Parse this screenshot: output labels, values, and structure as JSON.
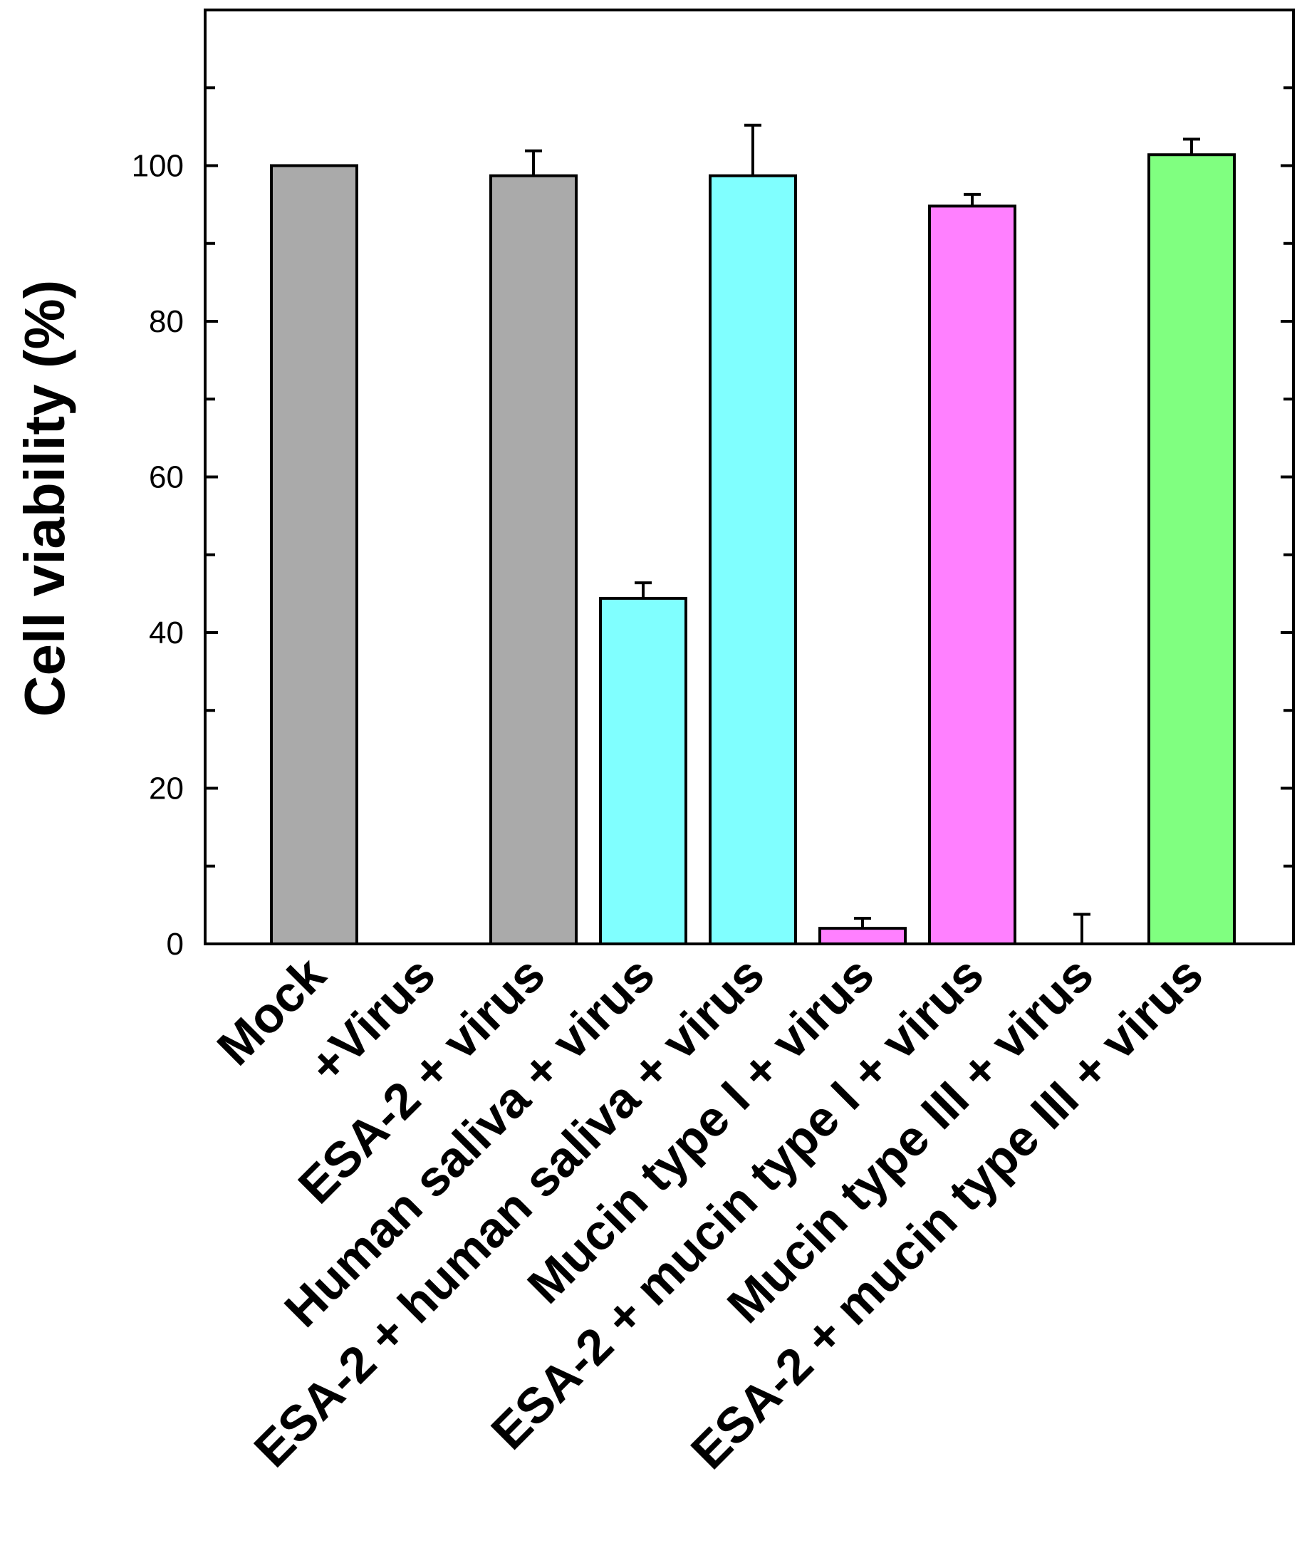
{
  "chart_data": {
    "type": "bar",
    "title": "",
    "xlabel": "",
    "ylabel": "Cell viability (%)",
    "ylim": [
      0,
      120
    ],
    "yticks": [
      0,
      20,
      40,
      60,
      80,
      100
    ],
    "ytick_labels": [
      "0",
      "20",
      "40",
      "60",
      "80",
      "100"
    ],
    "categories": [
      "Mock",
      "+Virus",
      "ESA-2 + virus",
      "Human saliva + virus",
      "ESA-2 + human saliva + virus",
      "Mucin type I + virus",
      "ESA-2 + mucin type I + virus",
      "Mucin type III + virus",
      "ESA-2 + mucin type III + virus"
    ],
    "values": [
      100,
      0,
      98.7,
      44.4,
      98.7,
      2.0,
      94.8,
      0,
      101.4
    ],
    "errors": [
      0,
      0,
      3.2,
      2.0,
      6.5,
      1.3,
      1.5,
      3.8,
      2.0
    ],
    "colors": [
      "#aaaaaa",
      "#aaaaaa",
      "#aaaaaa",
      "#80ffff",
      "#80ffff",
      "#ff80ff",
      "#ff80ff",
      "#ff80ff",
      "#80ff80"
    ],
    "grid": false,
    "legend": "none"
  }
}
